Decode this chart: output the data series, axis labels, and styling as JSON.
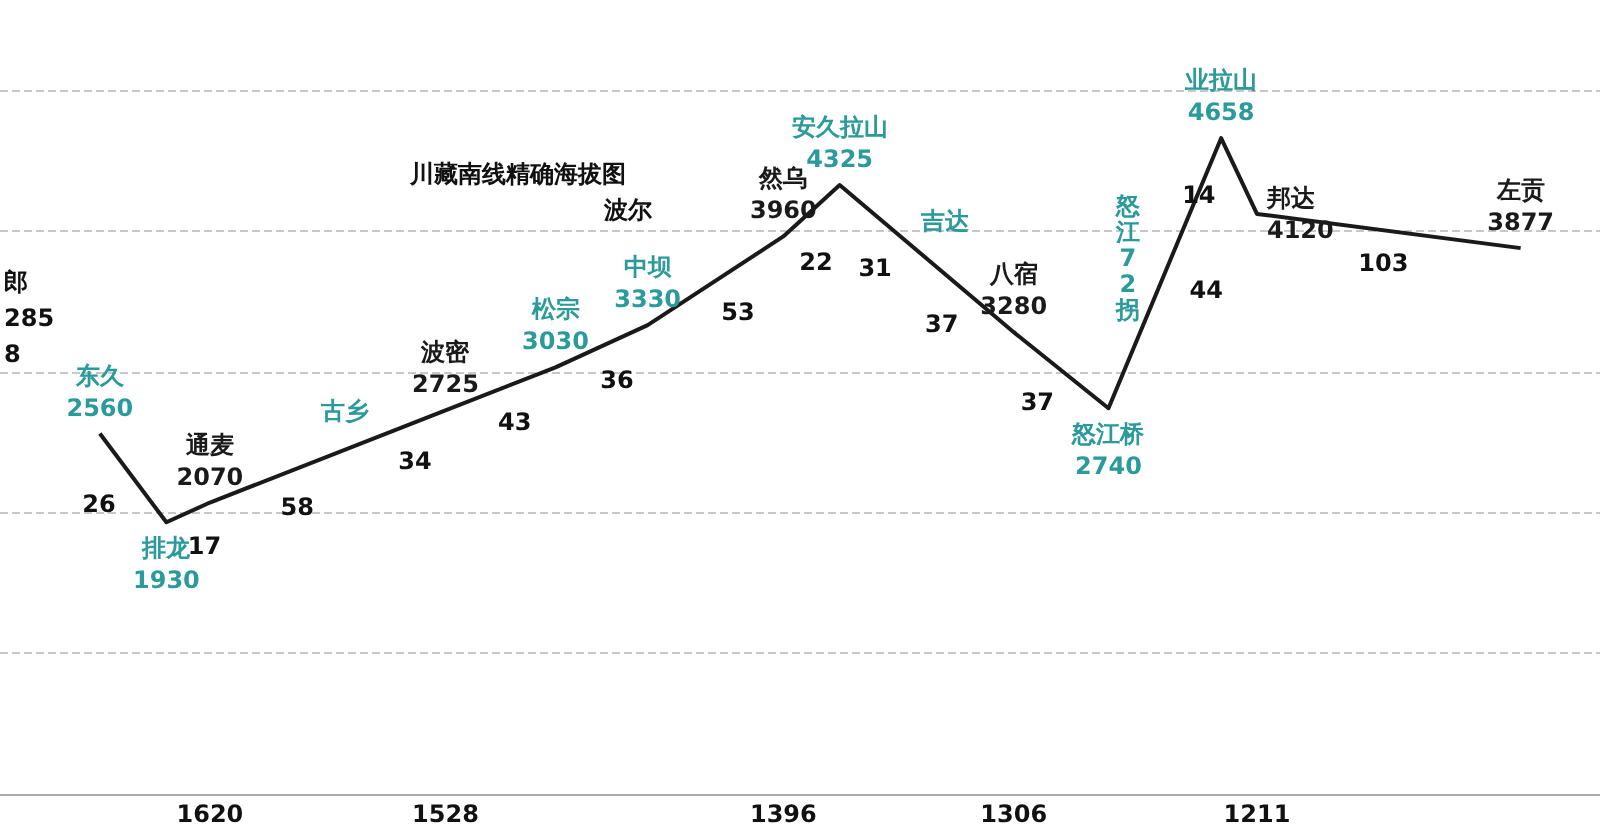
{
  "chart_data": {
    "type": "line",
    "title": "川藏南线精确海拔图",
    "subtitle": "波尔",
    "xlim": [
      1702,
      1077
    ],
    "xticks": [
      1620,
      1528,
      1396,
      1306,
      1211
    ],
    "tick_labels": "x",
    "grid": "y",
    "marker": "none",
    "x": [
      1663,
      1637,
      1620,
      1528,
      1485,
      1449,
      1396,
      1374,
      1306,
      1269,
      1225,
      1211,
      1108
    ],
    "series": [
      {
        "color": "#1a1a1a",
        "values": [
          2560,
          1930,
          2070,
          2725,
          3030,
          3330,
          3960,
          4325,
          3280,
          2740,
          4658,
          4120,
          3877
        ],
        "value_labels": [
          "东久\n2560",
          "排龙\n1930",
          "通麦\n2070",
          "波密\n2725",
          "松宗\n3030",
          "中坝\n3330",
          "然乌\n3960",
          "安久拉山\n4325",
          "八宿\n3280",
          "怒江桥\n2740",
          "业拉山\n4658",
          "邦达\n4120",
          "左贡\n3877"
        ],
        "colors": [
          "#2a9a9a",
          "#2a9a9a",
          "#1a1a1a",
          "#1a1a1a",
          "#2a9a9a",
          "#2a9a9a",
          "#1a1a1a",
          "#2a9a9a",
          "#1a1a1a",
          "#2a9a9a",
          "#2a9a9a",
          "#1a1a1a",
          "#1a1a1a"
        ]
      }
    ],
    "annotations": [
      "郎",
      "285",
      "8",
      {
        "text": "26",
        "x": 1650,
        "y": 2245
      },
      {
        "text": "17",
        "x": 1628,
        "y": 2000
      },
      {
        "text": "58",
        "x": 1591,
        "y": 2276
      },
      {
        "text": "34",
        "x": 1545,
        "y": 2604
      },
      {
        "text": "43",
        "x": 1506,
        "y": 2881
      },
      {
        "text": "36",
        "x": 1467,
        "y": 3180
      },
      {
        "text": "53",
        "x": 1422,
        "y": 3651
      },
      {
        "text": "22",
        "x": 1394,
        "y": 3993
      },
      {
        "text": "31",
        "x": 1350,
        "y": 3956
      },
      {
        "text": "37",
        "x": 1324,
        "y": 3557
      },
      {
        "text": "37",
        "x": 1287,
        "y": 3003
      },
      {
        "text": "44",
        "x": 1247,
        "y": 3699
      },
      {
        "text": "14",
        "x": 1218,
        "y": 4389
      },
      {
        "text": "103",
        "x": 1160,
        "y": 3997
      },
      {
        "text": "古乡",
        "x": 1562,
        "y": 2483
      },
      {
        "text": "吉达",
        "x": 1343,
        "y": 3849
      },
      {
        "text": "怒江72拐",
        "x": 1247,
        "y": 3699
      }
    ]
  }
}
